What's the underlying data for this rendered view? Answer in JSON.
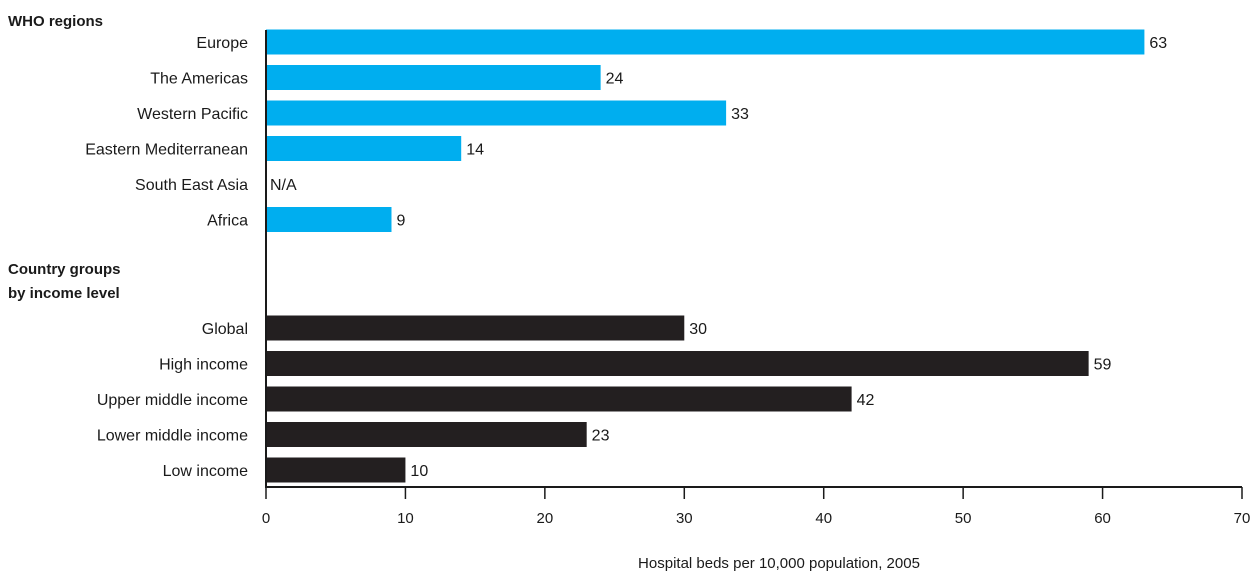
{
  "chart_data": {
    "type": "bar",
    "orientation": "horizontal",
    "xlabel": "Hospital beds per 10,000 population, 2005",
    "xlim": [
      0,
      70
    ],
    "xticks": [
      "0",
      "10",
      "20",
      "30",
      "40",
      "50",
      "60",
      "70"
    ],
    "groups": [
      {
        "title": "WHO regions",
        "color": "#00AEEF",
        "categories": [
          "Europe",
          "The Americas",
          "Western Pacific",
          "Eastern Mediterranean",
          "South East Asia",
          "Africa"
        ],
        "values": [
          63,
          24,
          33,
          14,
          null,
          9
        ],
        "value_labels": [
          "63",
          "24",
          "33",
          "14",
          "N/A",
          "9"
        ]
      },
      {
        "title": "Country groups\nby income level",
        "color": "#231F20",
        "categories": [
          "Global",
          "High income",
          "Upper middle income",
          "Lower middle income",
          "Low income"
        ],
        "values": [
          30,
          59,
          42,
          23,
          10
        ],
        "value_labels": [
          "30",
          "59",
          "42",
          "23",
          "10"
        ]
      }
    ]
  }
}
